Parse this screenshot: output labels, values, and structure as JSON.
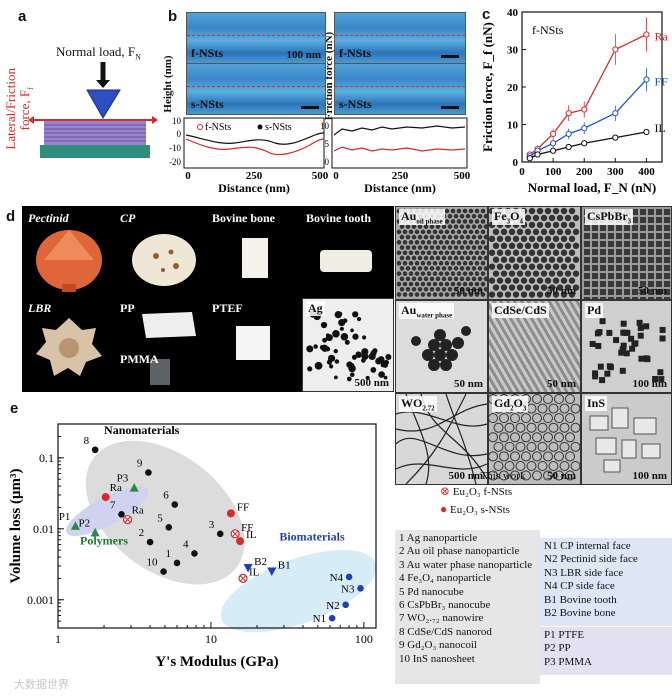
{
  "panel_a": {
    "label": "a",
    "normal_load": "Normal load, F",
    "normal_load_sub": "N",
    "lateral_label": "Lateral/Friction",
    "force_label": "force, F",
    "force_sub": "f"
  },
  "panel_b": {
    "label": "b",
    "height_axis": "Height (nm)",
    "friction_axis": "Friction force (nN)",
    "f_label": "f-NSts",
    "s_label": "s-NSts",
    "scale_text": "100 nm",
    "x_label": "Distance (nm)",
    "legend_f": "f-NSts",
    "legend_s": "s-NSts",
    "height_yticks": [
      "10",
      "0",
      "-10",
      "-20"
    ],
    "friction_yticks": [
      "10",
      "5",
      "0"
    ],
    "xticks": [
      "0",
      "250",
      "500"
    ]
  },
  "chart_data": [
    {
      "type": "scatter",
      "title": "f-NSts",
      "panel": "c",
      "xlabel": "Normal load, F_N (nN)",
      "ylabel": "Friction force, F_f (nN)",
      "xlim": [
        0,
        450
      ],
      "ylim": [
        0,
        40
      ],
      "xticks": [
        "0",
        "100",
        "200",
        "300",
        "400"
      ],
      "yticks": [
        "0",
        "10",
        "20",
        "30",
        "40"
      ],
      "series": [
        {
          "name": "Ra",
          "color": "#d62b2b",
          "x": [
            25,
            50,
            100,
            150,
            200,
            300,
            400
          ],
          "y": [
            2,
            3.5,
            7.5,
            13,
            14,
            30,
            34
          ]
        },
        {
          "name": "FF",
          "color": "#2457c5",
          "x": [
            25,
            50,
            100,
            150,
            200,
            300,
            400
          ],
          "y": [
            1.5,
            3,
            5,
            7.5,
            9,
            13,
            22
          ]
        },
        {
          "name": "IL",
          "color": "#111111",
          "x": [
            25,
            50,
            100,
            150,
            200,
            300,
            400
          ],
          "y": [
            1,
            2,
            3,
            4,
            5,
            6.5,
            8
          ]
        }
      ]
    },
    {
      "type": "scatter",
      "panel": "e",
      "xlabel": "Y's Modulus (GPa)",
      "ylabel": "Volume loss (μm³)",
      "xscale": "log",
      "yscale": "log",
      "xlim": [
        1,
        120
      ],
      "ylim": [
        0.0004,
        0.3
      ],
      "xticks": [
        "1",
        "10",
        "100"
      ],
      "yticks": [
        "0.001",
        "0.01",
        "0.1"
      ],
      "groups": [
        "Nanomaterials",
        "Polymers",
        "Biomaterials"
      ],
      "points": [
        {
          "label": "1",
          "x": 6.0,
          "y": 0.0033,
          "marker": "dot",
          "color": "#111111"
        },
        {
          "label": "2",
          "x": 4.0,
          "y": 0.0065,
          "marker": "dot",
          "color": "#111111"
        },
        {
          "label": "3",
          "x": 11.5,
          "y": 0.0085,
          "marker": "dot",
          "color": "#111111"
        },
        {
          "label": "4",
          "x": 7.8,
          "y": 0.0045,
          "marker": "dot",
          "color": "#111111"
        },
        {
          "label": "5",
          "x": 5.3,
          "y": 0.0105,
          "marker": "dot",
          "color": "#111111"
        },
        {
          "label": "6",
          "x": 5.8,
          "y": 0.022,
          "marker": "dot",
          "color": "#111111"
        },
        {
          "label": "7",
          "x": 2.6,
          "y": 0.016,
          "marker": "dot",
          "color": "#111111"
        },
        {
          "label": "8",
          "x": 1.75,
          "y": 0.13,
          "marker": "dot",
          "color": "#111111"
        },
        {
          "label": "9",
          "x": 3.9,
          "y": 0.062,
          "marker": "dot",
          "color": "#111111"
        },
        {
          "label": "10",
          "x": 4.9,
          "y": 0.0025,
          "marker": "dot",
          "color": "#111111"
        },
        {
          "label": "P1",
          "x": 1.3,
          "y": 0.011,
          "marker": "triangle-up",
          "color": "#2b8a3e"
        },
        {
          "label": "P2",
          "x": 1.75,
          "y": 0.0089,
          "marker": "triangle-up",
          "color": "#2b8a3e"
        },
        {
          "label": "P3",
          "x": 3.15,
          "y": 0.038,
          "marker": "triangle-up",
          "color": "#2b8a3e"
        },
        {
          "label": "Ra",
          "x": 2.05,
          "y": 0.028,
          "marker": "filled-circle",
          "color": "#d62b2b"
        },
        {
          "label": "Ra",
          "x": 2.85,
          "y": 0.0135,
          "marker": "crossed-circle",
          "color": "#d62b2b"
        },
        {
          "label": "FF",
          "x": 13.5,
          "y": 0.0165,
          "marker": "filled-circle",
          "color": "#d62b2b"
        },
        {
          "label": "FF",
          "x": 14.4,
          "y": 0.0085,
          "marker": "crossed-circle",
          "color": "#d62b2b"
        },
        {
          "label": "IL",
          "x": 15.5,
          "y": 0.0067,
          "marker": "filled-circle",
          "color": "#d62b2b"
        },
        {
          "label": "IL",
          "x": 16.2,
          "y": 0.002,
          "marker": "crossed-circle",
          "color": "#d62b2b"
        },
        {
          "label": "B1",
          "x": 25,
          "y": 0.0025,
          "marker": "triangle-down",
          "color": "#1f3fb5"
        },
        {
          "label": "B2",
          "x": 17.5,
          "y": 0.0028,
          "marker": "triangle-down",
          "color": "#1f3fb5"
        },
        {
          "label": "N1",
          "x": 62,
          "y": 0.00055,
          "marker": "dot",
          "color": "#1f3fb5"
        },
        {
          "label": "N2",
          "x": 76,
          "y": 0.00085,
          "marker": "dot",
          "color": "#1f3fb5"
        },
        {
          "label": "N3",
          "x": 95,
          "y": 0.00145,
          "marker": "dot",
          "color": "#1f3fb5"
        },
        {
          "label": "N4",
          "x": 80,
          "y": 0.0021,
          "marker": "dot",
          "color": "#1f3fb5"
        }
      ]
    }
  ],
  "panel_c": {
    "label": "c"
  },
  "panel_d": {
    "label": "d",
    "photos": [
      {
        "name": "Pectinid",
        "italic": true
      },
      {
        "name": "CP",
        "italic": true
      },
      {
        "name": "Bovine bone",
        "italic": false
      },
      {
        "name": "Bovine tooth",
        "italic": false
      },
      {
        "name": "LBR",
        "italic": true
      },
      {
        "name": "PP",
        "italic": false
      },
      {
        "name": "PMMA",
        "italic": false
      },
      {
        "name": "PTEF",
        "italic": false
      }
    ],
    "tem": [
      {
        "name": "Ag",
        "scale": "500 nm"
      },
      {
        "name": "Au",
        "sub": "oil phase",
        "scale": "50 nm"
      },
      {
        "name": "Fe",
        "sub": "3",
        "tail": "O",
        "sub2": "4",
        "scale": "50 nm"
      },
      {
        "name": "CsPbBr",
        "sub": "3",
        "scale": "50 nm"
      },
      {
        "name": "Au",
        "sub": "water phase",
        "scale": "50 nm"
      },
      {
        "name": "CdSe/CdS",
        "scale": "50 nm"
      },
      {
        "name": "Pd",
        "scale": "100 nm"
      },
      {
        "name": "WO",
        "sub": "2.72",
        "scale": "500 nm"
      },
      {
        "name": "Gd",
        "sub": "2",
        "tail": "O",
        "sub2": "3",
        "scale": "50 nm"
      },
      {
        "name": "InS",
        "scale": "100 nm"
      }
    ]
  },
  "panel_e": {
    "label": "e",
    "nano_label": "Nanomaterials",
    "poly_label": "Polymers",
    "bio_label": "Biomaterials",
    "this_work": "This work",
    "legend_f": "Eu₂O₃ f-NSts",
    "legend_s": "Eu₂O₃ s-NSts",
    "materials": [
      "1  Ag nanoparticle",
      "2  Au oil phase nanoparticle",
      "3  Au water phase nanoparticle",
      "4  Fe₃O₄ nanoparticle",
      "5  Pd nanocube",
      "6  CsPbBr₃ nanocube",
      "7  WO₂.₇₂ nanowire",
      "8  CdSe/CdS nanorod",
      "9  Gd₂O₃ nanocoil",
      "10  InS nanosheet"
    ],
    "bio": [
      "N1  CP internal face",
      "N2  Pectinid side face",
      "N3  LBR side face",
      "N4  CP side face",
      "B1  Bovine tooth",
      "B2  Bovine bone"
    ],
    "poly": [
      "P1  PTFE",
      "P2  PP",
      "P3  PMMA"
    ]
  },
  "watermark": "大数据世界"
}
